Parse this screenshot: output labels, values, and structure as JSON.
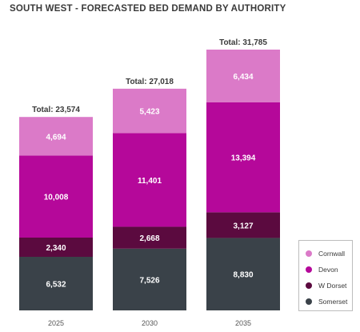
{
  "chart_data": {
    "type": "bar",
    "stacked": true,
    "title": "SOUTH WEST - FORECASTED BED DEMAND BY AUTHORITY",
    "categories": [
      "2025",
      "2030",
      "2035"
    ],
    "series": [
      {
        "name": "Somerset",
        "color": "#3a4249",
        "values": [
          6532,
          7526,
          8830
        ]
      },
      {
        "name": "W Dorset",
        "color": "#5b0a3f",
        "values": [
          2340,
          2668,
          3127
        ]
      },
      {
        "name": "Devon",
        "color": "#b5089a",
        "values": [
          10008,
          11401,
          13394
        ]
      },
      {
        "name": "Cornwall",
        "color": "#db7ac8",
        "values": [
          4694,
          5423,
          6434
        ]
      }
    ],
    "series_labels": [
      [
        "6,532",
        "7,526",
        "8,830"
      ],
      [
        "2,340",
        "2,668",
        "3,127"
      ],
      [
        "10,008",
        "11,401",
        "13,394"
      ],
      [
        "4,694",
        "5,423",
        "6,434"
      ]
    ],
    "totals": [
      "Total: 23,574",
      "Total: 27,018",
      "Total: 31,785"
    ],
    "ylim": [
      0,
      31785
    ],
    "legend_order": [
      "Cornwall",
      "Devon",
      "W Dorset",
      "Somerset"
    ],
    "legend_position": "bottom-right",
    "grid": false
  }
}
